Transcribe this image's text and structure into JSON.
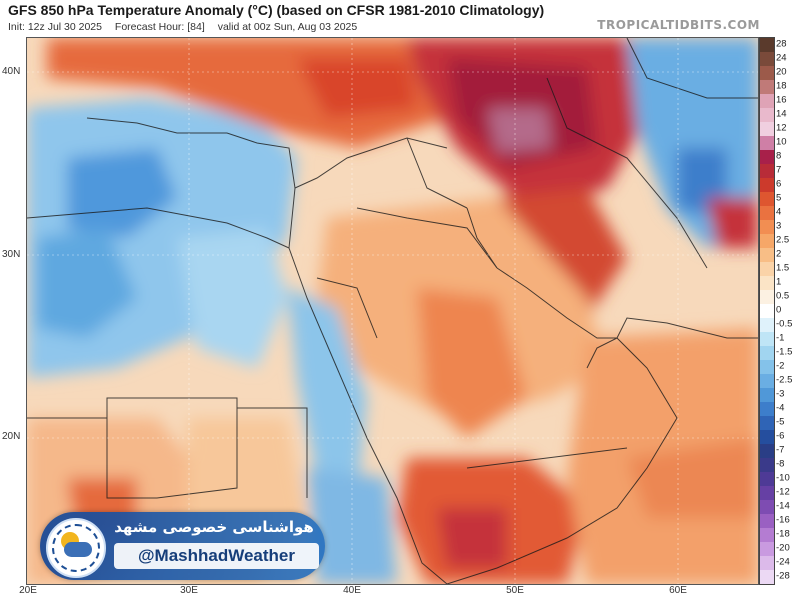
{
  "header": {
    "title": "GFS 850 hPa Temperature Anomaly (°C) (based on CFSR 1981-2010 Climatology)",
    "init": "Init: 12z Jul 30 2025",
    "forecast_hour": "Forecast Hour: [84]",
    "valid": "valid at 00z Sun, Aug 03 2025",
    "brand": "TROPICALTIDBITS.COM"
  },
  "map": {
    "lat_labels": [
      "40N",
      "30N",
      "20N"
    ],
    "lon_labels": [
      "20E",
      "30E",
      "40E",
      "50E",
      "60E"
    ],
    "region_colors": {
      "strong_warm": "#a31a3a",
      "warm": "#d9442a",
      "mild_warm": "#f08a4b",
      "slight_warm": "#f7c79a",
      "near_zero": "#fbf2e6",
      "slight_cool": "#9fd0ee",
      "cool": "#5fa8e0",
      "cold": "#2f6fc2"
    }
  },
  "colorbar": {
    "labels": [
      "28",
      "24",
      "20",
      "18",
      "16",
      "14",
      "12",
      "10",
      "8",
      "7",
      "6",
      "5",
      "4",
      "3",
      "2.5",
      "2",
      "1.5",
      "1",
      "0.5",
      "0",
      "-0.5",
      "-1",
      "-1.5",
      "-2",
      "-2.5",
      "-3",
      "-4",
      "-5",
      "-6",
      "-7",
      "-8",
      "-10",
      "-12",
      "-14",
      "-16",
      "-18",
      "-20",
      "-24",
      "-28"
    ],
    "colors": [
      "#5a3a2c",
      "#7a4a3a",
      "#9c5a4a",
      "#c07a78",
      "#dfa3b6",
      "#e9b9cc",
      "#f0cfe0",
      "#cf7fa6",
      "#a8204a",
      "#b82c38",
      "#cc3a2c",
      "#de5630",
      "#ea7240",
      "#f28e52",
      "#f6a768",
      "#f8be86",
      "#fad3a8",
      "#fbe4c6",
      "#fcf1e2",
      "#ffffff",
      "#dff2fb",
      "#bfe5f6",
      "#a1d5f0",
      "#84c2ea",
      "#6aaee3",
      "#5098d8",
      "#3d7ecb",
      "#2f64b6",
      "#254e9e",
      "#2a3e86",
      "#3a3a8a",
      "#4e3a96",
      "#6640a4",
      "#7e4cb2",
      "#9a60c2",
      "#b47cd2",
      "#c99ae0",
      "#dcbaea",
      "#ecd9f4"
    ]
  },
  "watermark": {
    "persian_name": "هواشناسی خصوصی مشهد",
    "handle": "@MashhadWeather"
  }
}
